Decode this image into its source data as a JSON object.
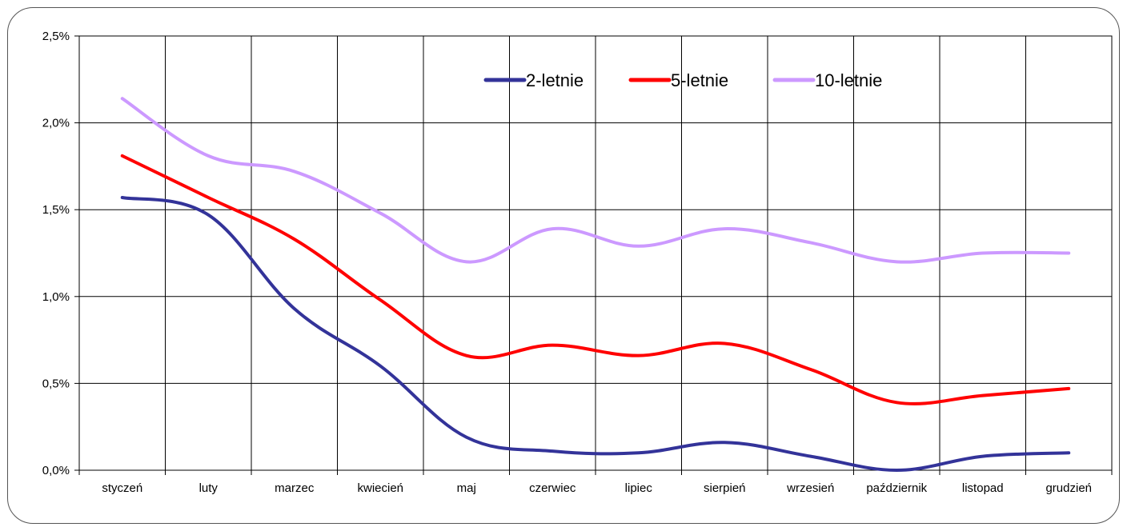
{
  "chart_data": {
    "type": "line",
    "title": "",
    "xlabel": "",
    "ylabel": "",
    "categories": [
      "styczeń",
      "luty",
      "marzec",
      "kwiecień",
      "maj",
      "czerwiec",
      "lipiec",
      "sierpień",
      "wrzesień",
      "październik",
      "listopad",
      "grudzień"
    ],
    "ylim": [
      0,
      0.025
    ],
    "yticks": [
      0,
      0.005,
      0.01,
      0.015,
      0.02,
      0.025
    ],
    "ytick_labels": [
      "0,0%",
      "0,5%",
      "1,0%",
      "1,5%",
      "2,0%",
      "2,5%"
    ],
    "grid": true,
    "legend_position": "top-center",
    "series": [
      {
        "name": "2-letnie",
        "color": "#333399",
        "values": [
          0.0157,
          0.0147,
          0.0093,
          0.006,
          0.0019,
          0.0011,
          0.001,
          0.0016,
          0.0008,
          0.0,
          0.0008,
          0.001
        ]
      },
      {
        "name": "5-letnie",
        "color": "#ff0000",
        "values": [
          0.0181,
          0.0157,
          0.0133,
          0.0098,
          0.0066,
          0.0072,
          0.0066,
          0.0073,
          0.0058,
          0.0039,
          0.0043,
          0.0047
        ]
      },
      {
        "name": "10-letnie",
        "color": "#cc99ff",
        "values": [
          0.0214,
          0.0181,
          0.0172,
          0.0148,
          0.012,
          0.0139,
          0.0129,
          0.0139,
          0.0131,
          0.012,
          0.0125,
          0.0125
        ]
      }
    ]
  }
}
